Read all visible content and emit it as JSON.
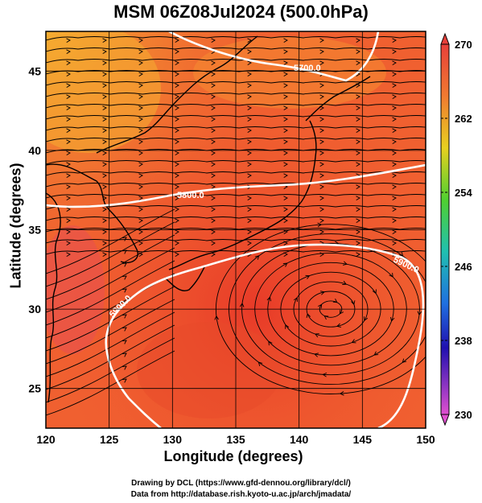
{
  "title": "MSM 06Z08Jul2024 (500.0hPa)",
  "xlabel": "Longitude (degrees)",
  "ylabel": "Latitude  (degrees)",
  "credits": {
    "line1": "Drawing by DCL (https://www.gfd-dennou.org/library/dcl/)",
    "line2": "Data from http://database.rish.kyoto-u.ac.jp/arch/jmadata/"
  },
  "map": {
    "lon_range": [
      120,
      150
    ],
    "lat_range": [
      22.5,
      47.5
    ],
    "x_ticks": [
      "120",
      "125",
      "130",
      "135",
      "140",
      "145",
      "150"
    ],
    "y_ticks": [
      "25",
      "30",
      "35",
      "40",
      "45"
    ]
  },
  "contours": [
    {
      "label": "5700.0"
    },
    {
      "label": "5800.0"
    },
    {
      "label": "5900.0"
    },
    {
      "label": "5900.0"
    }
  ],
  "colorbar": {
    "range": [
      230,
      270
    ],
    "tick_labels": [
      "270",
      "262",
      "254",
      "246",
      "238",
      "230"
    ]
  },
  "colors": {
    "field_base": "#f06030",
    "field_warm": "#e8402a",
    "field_cool": "#f5a030",
    "contour": "#ffffff",
    "coast": "#000000"
  }
}
